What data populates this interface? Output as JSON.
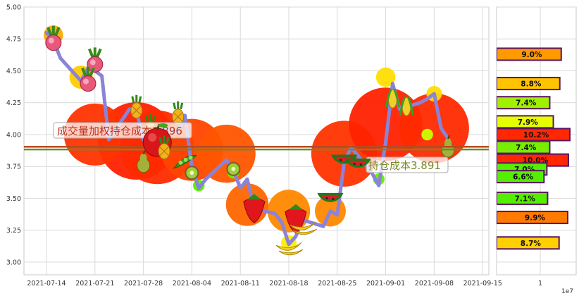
{
  "chart_data": [
    {
      "type": "line",
      "x_ticks": [
        "2021-07-14",
        "2021-07-21",
        "2021-07-28",
        "2021-08-04",
        "2021-08-11",
        "2021-08-18",
        "2021-08-25",
        "2021-09-01",
        "2021-09-08",
        "2021-09-15"
      ],
      "y_ticks": [
        "3.00",
        "3.25",
        "3.50",
        "3.75",
        "4.00",
        "4.25",
        "4.50",
        "4.75",
        "5.00"
      ],
      "ylim": [
        2.9,
        5.0
      ],
      "grid": true,
      "series": [
        {
          "name": "",
          "color": "#8a83d8",
          "x": [
            "2021-07-14",
            "2021-07-15",
            "2021-07-16",
            "2021-07-19",
            "2021-07-20",
            "2021-07-21",
            "2021-07-22",
            "2021-07-23",
            "2021-07-26",
            "2021-07-27",
            "2021-07-28",
            "2021-07-29",
            "2021-07-30",
            "2021-08-02",
            "2021-08-03",
            "2021-08-04",
            "2021-08-05",
            "2021-08-06",
            "2021-08-09",
            "2021-08-10",
            "2021-08-11",
            "2021-08-12",
            "2021-08-13",
            "2021-08-16",
            "2021-08-17",
            "2021-08-18",
            "2021-08-19",
            "2021-08-20",
            "2021-08-23",
            "2021-08-24",
            "2021-08-25",
            "2021-08-26",
            "2021-08-27",
            "2021-08-30",
            "2021-08-31",
            "2021-09-01",
            "2021-09-02",
            "2021-09-03",
            "2021-09-06",
            "2021-09-07",
            "2021-09-08",
            "2021-09-09",
            "2021-09-10"
          ],
          "values": [
            4.8,
            4.74,
            4.6,
            4.42,
            4.52,
            4.5,
            4.46,
            3.96,
            4.2,
            4.18,
            3.96,
            3.9,
            4.05,
            4.02,
            4.15,
            3.74,
            3.58,
            3.65,
            3.8,
            3.72,
            3.58,
            3.65,
            3.42,
            3.38,
            3.31,
            3.14,
            3.2,
            3.33,
            3.28,
            3.4,
            3.37,
            3.78,
            3.9,
            3.7,
            3.6,
            3.94,
            4.4,
            4.2,
            4.25,
            4.28,
            4.32,
            4.05,
            3.97
          ]
        }
      ],
      "reference_lines": [
        {
          "value": 3.896,
          "label": "成交量加权持仓成本3.896",
          "color": "#b8341f"
        },
        {
          "value": 3.891,
          "label": "持仓成本3.891",
          "color": "#7a8a2a"
        }
      ]
    },
    {
      "type": "bar",
      "orientation": "horizontal",
      "ylim": [
        2.9,
        5.0
      ],
      "x_tick": "1",
      "x_multiplier": "1e7",
      "bars": [
        {
          "price": 4.63,
          "label": "9.0%",
          "color": "#ff9a00"
        },
        {
          "price": 4.4,
          "label": "8.8%",
          "color": "#ffc400"
        },
        {
          "price": 4.25,
          "label": "7.4%",
          "color": "#a0f000"
        },
        {
          "price": 4.1,
          "label": "7.9%",
          "color": "#e6ff00"
        },
        {
          "price": 4.0,
          "label": "10.2%",
          "color": "#ff2800"
        },
        {
          "price": 3.9,
          "label": "7.4%",
          "color": "#78ee00"
        },
        {
          "price": 3.8,
          "label": "10.0%",
          "color": "#ff2800"
        },
        {
          "price": 3.73,
          "label": "7.0%",
          "color": "#55ee00"
        },
        {
          "price": 3.67,
          "label": "6.6%",
          "color": "#55ee00"
        },
        {
          "price": 3.5,
          "label": "7.1%",
          "color": "#55ee00"
        },
        {
          "price": 3.35,
          "label": "9.9%",
          "color": "#ff7a00"
        },
        {
          "price": 3.15,
          "label": "8.7%",
          "color": "#ffd000"
        }
      ],
      "bar_values": [
        9.0,
        8.8,
        7.4,
        7.9,
        10.2,
        7.4,
        10.0,
        7.0,
        6.6,
        7.1,
        9.9,
        8.7
      ]
    }
  ],
  "blobs": [
    {
      "x": "2021-07-27",
      "v": 3.95,
      "r": 1.0,
      "c": "#ff2200"
    },
    {
      "x": "2021-07-21",
      "v": 4.0,
      "r": 0.8,
      "c": "#ff3300"
    },
    {
      "x": "2021-07-30",
      "v": 3.9,
      "r": 0.95,
      "c": "#ff2a00"
    },
    {
      "x": "2021-08-04",
      "v": 3.88,
      "r": 0.8,
      "c": "#ff4400"
    },
    {
      "x": "2021-08-09",
      "v": 3.85,
      "r": 0.75,
      "c": "#ff5500"
    },
    {
      "x": "2021-08-26",
      "v": 3.85,
      "r": 0.85,
      "c": "#ff3300"
    },
    {
      "x": "2021-09-01",
      "v": 4.08,
      "r": 0.95,
      "c": "#ff2200"
    },
    {
      "x": "2021-09-08",
      "v": 4.05,
      "r": 0.9,
      "c": "#ff2a00"
    },
    {
      "x": "2021-08-12",
      "v": 3.45,
      "r": 0.55,
      "c": "#ff6600"
    },
    {
      "x": "2021-08-18",
      "v": 3.4,
      "r": 0.55,
      "c": "#ff8800"
    },
    {
      "x": "2021-08-24",
      "v": 3.4,
      "r": 0.4,
      "c": "#ff8800"
    },
    {
      "x": "2021-07-15",
      "v": 4.78,
      "r": 0.25,
      "c": "#ffaa00"
    },
    {
      "x": "2021-07-19",
      "v": 4.45,
      "r": 0.3,
      "c": "#ffcc00"
    },
    {
      "x": "2021-08-18",
      "v": 3.15,
      "r": 0.2,
      "c": "#ffee00"
    },
    {
      "x": "2021-09-01",
      "v": 4.45,
      "r": 0.25,
      "c": "#ffdd00"
    },
    {
      "x": "2021-09-08",
      "v": 4.32,
      "r": 0.2,
      "c": "#ffdd00"
    },
    {
      "x": "2021-08-05",
      "v": 3.6,
      "r": 0.15,
      "c": "#55ee00"
    },
    {
      "x": "2021-08-10",
      "v": 3.7,
      "r": 0.15,
      "c": "#66ee00"
    },
    {
      "x": "2021-08-31",
      "v": 3.65,
      "r": 0.15,
      "c": "#66ee00"
    },
    {
      "x": "2021-09-07",
      "v": 4.0,
      "r": 0.15,
      "c": "#ccff00"
    }
  ],
  "fruits": [
    {
      "x": "2021-07-15",
      "v": 4.72,
      "kind": "radish"
    },
    {
      "x": "2021-07-21",
      "v": 4.55,
      "kind": "radish"
    },
    {
      "x": "2021-07-20",
      "v": 4.4,
      "kind": "radish"
    },
    {
      "x": "2021-07-27",
      "v": 4.2,
      "kind": "pineapple"
    },
    {
      "x": "2021-07-29",
      "v": 4.05,
      "kind": "pineapple"
    },
    {
      "x": "2021-08-02",
      "v": 4.15,
      "kind": "pineapple"
    },
    {
      "x": "2021-07-30",
      "v": 3.95,
      "kind": "apple"
    },
    {
      "x": "2021-07-28",
      "v": 3.78,
      "kind": "pear"
    },
    {
      "x": "2021-08-03",
      "v": 3.78,
      "kind": "peapod"
    },
    {
      "x": "2021-08-04",
      "v": 3.7,
      "kind": "kiwi"
    },
    {
      "x": "2021-08-10",
      "v": 3.73,
      "kind": "kiwi"
    },
    {
      "x": "2021-08-13",
      "v": 3.43,
      "kind": "strawberry"
    },
    {
      "x": "2021-08-19",
      "v": 3.35,
      "kind": "strawberry"
    },
    {
      "x": "2021-08-20",
      "v": 3.28,
      "kind": "banana"
    },
    {
      "x": "2021-08-18",
      "v": 3.12,
      "kind": "banana"
    },
    {
      "x": "2021-08-24",
      "v": 3.5,
      "kind": "watermelon"
    },
    {
      "x": "2021-08-26",
      "v": 3.8,
      "kind": "watermelon"
    },
    {
      "x": "2021-08-28",
      "v": 3.77,
      "kind": "watermelon"
    },
    {
      "x": "2021-09-02",
      "v": 4.28,
      "kind": "corn"
    },
    {
      "x": "2021-09-04",
      "v": 4.22,
      "kind": "corn"
    },
    {
      "x": "2021-09-10",
      "v": 3.9,
      "kind": "pear"
    }
  ]
}
